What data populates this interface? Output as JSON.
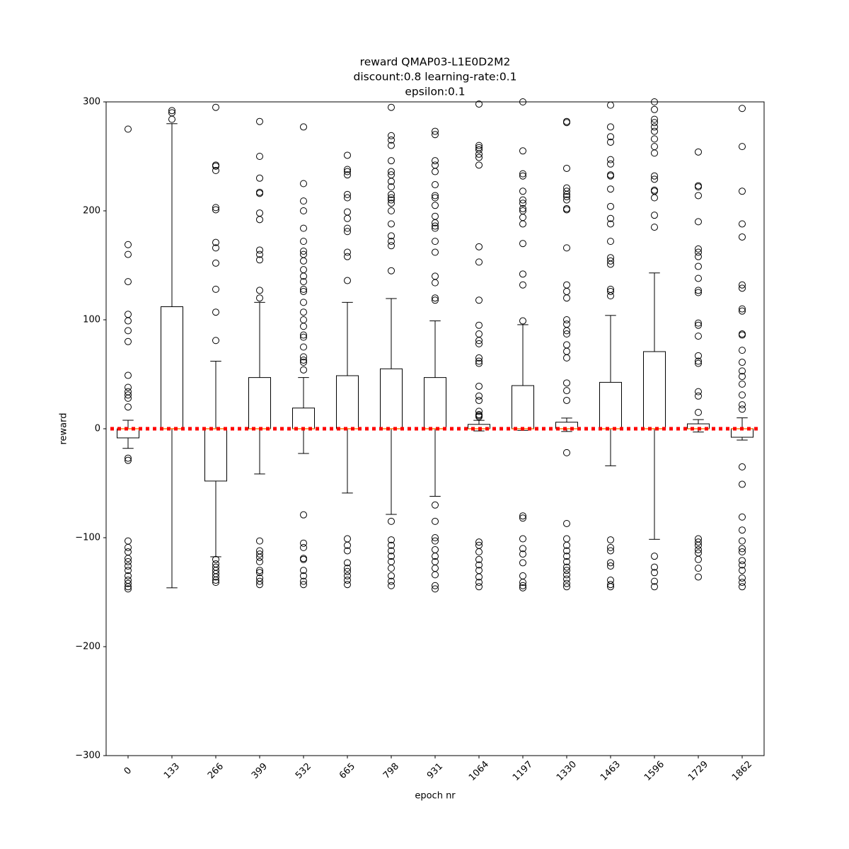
{
  "chart_data": {
    "type": "box",
    "title": [
      "reward QMAP03-L1E0D2M2",
      "discount:0.8 learning-rate:0.1",
      "epsilon:0.1"
    ],
    "x_label": "epoch nr",
    "y_label": "reward",
    "categories": [
      "0",
      "133",
      "266",
      "399",
      "532",
      "665",
      "798",
      "931",
      "1064",
      "1197",
      "1330",
      "1463",
      "1596",
      "1729",
      "1862"
    ],
    "ylim": [
      -300,
      300
    ],
    "yticks": [
      {
        "value": -300,
        "label": "−300"
      },
      {
        "value": -200,
        "label": "−200"
      },
      {
        "value": -100,
        "label": "−100"
      },
      0,
      100,
      200,
      300
    ],
    "box_color": "#000000",
    "median_color": "#ff7f0e",
    "reference_line": {
      "value": 0,
      "color": "#ff0000"
    },
    "boxes": [
      {
        "whislo": -18,
        "q1": -8.4,
        "med": 0,
        "q3": 0,
        "whishi": 7.8,
        "fliers": [
          275,
          169,
          160,
          135,
          105,
          99,
          90,
          80,
          49,
          38,
          34,
          31,
          28,
          20,
          -27,
          -29,
          -103,
          -109,
          -113,
          -119,
          -122,
          -126,
          -130,
          -135,
          -139,
          -142,
          -145,
          -147
        ]
      },
      {
        "whislo": -146,
        "q1": 0,
        "med": 0,
        "q3": 112,
        "whishi": 280,
        "fliers": [
          292,
          290,
          284
        ]
      },
      {
        "whislo": -117.5,
        "q1": -48,
        "med": 0,
        "q3": 0,
        "whishi": 62,
        "fliers": [
          295,
          242,
          241,
          237,
          203,
          201,
          171,
          166,
          152,
          128,
          107,
          81,
          -120,
          -124,
          -127,
          -130,
          -133,
          -136,
          -139,
          -141
        ]
      },
      {
        "whislo": -41.5,
        "q1": 0,
        "med": 0,
        "q3": 47,
        "whishi": 116,
        "fliers": [
          282,
          250,
          230,
          217,
          216,
          198,
          192,
          164,
          160,
          155,
          127,
          120,
          -103,
          -112,
          -115,
          -118,
          -122,
          -130,
          -132,
          -137,
          -140,
          -143
        ]
      },
      {
        "whislo": -22.7,
        "q1": 0,
        "med": 0,
        "q3": 19,
        "whishi": 47,
        "fliers": [
          277,
          225,
          209,
          200,
          184,
          172,
          163,
          160,
          154,
          146,
          140,
          135,
          128,
          126,
          116,
          107,
          100,
          94,
          86,
          84,
          75,
          66,
          63,
          61,
          54,
          -79,
          -105,
          -109,
          -119,
          -120,
          -130,
          -135,
          -140,
          -143
        ]
      },
      {
        "whislo": -59,
        "q1": 0,
        "med": 0,
        "q3": 48.7,
        "whishi": 116,
        "fliers": [
          251,
          238,
          236,
          233,
          215,
          212,
          199,
          193,
          184,
          181,
          162,
          158,
          136,
          -101,
          -107,
          -112,
          -123,
          -128,
          -131,
          -135,
          -139,
          -143
        ]
      },
      {
        "whislo": -78.6,
        "q1": 0,
        "med": 0,
        "q3": 55,
        "whishi": 119.5,
        "fliers": [
          295,
          269,
          265,
          260,
          246,
          236,
          233,
          227,
          222,
          215,
          212,
          210,
          207,
          200,
          188,
          177,
          172,
          168,
          145,
          -85,
          -102,
          -107,
          -112,
          -117,
          -122,
          -128,
          -135,
          -140,
          -144
        ]
      },
      {
        "whislo": -62,
        "q1": 0,
        "med": 0,
        "q3": 47,
        "whishi": 99,
        "fliers": [
          273,
          270,
          246,
          242,
          236,
          224,
          214,
          212,
          205,
          195,
          189,
          186,
          184,
          172,
          162,
          140,
          134,
          120,
          118,
          -70,
          -85,
          -100,
          -103,
          -111,
          -117,
          -122,
          -128,
          -134,
          -144,
          -147
        ]
      },
      {
        "whislo": -2,
        "q1": 0,
        "med": 0,
        "q3": 4,
        "whishi": 7.7,
        "fliers": [
          298,
          260,
          258,
          256,
          252,
          249,
          242,
          167,
          153,
          118,
          95,
          87,
          81,
          78,
          65,
          62,
          60,
          39,
          30,
          26,
          16,
          13,
          12,
          11,
          -104,
          -107,
          -113,
          -120,
          -125,
          -130,
          -136,
          -141,
          -145
        ]
      },
      {
        "whislo": -1.5,
        "q1": 0,
        "med": 0,
        "q3": 39.6,
        "whishi": 95.5,
        "fliers": [
          300,
          255,
          234,
          232,
          218,
          210,
          207,
          202,
          200,
          194,
          188,
          170,
          142,
          132,
          99,
          -80,
          -82,
          -101,
          -110,
          -115,
          -123,
          -135,
          -141,
          -144,
          -146
        ]
      },
      {
        "whislo": -2.5,
        "q1": 0,
        "med": 0,
        "q3": 6,
        "whishi": 9.8,
        "fliers": [
          282,
          281,
          239,
          221,
          218,
          215,
          213,
          210,
          202,
          201,
          166,
          132,
          126,
          120,
          100,
          96,
          90,
          87,
          77,
          71,
          65,
          42,
          35,
          26,
          -22,
          -87,
          -101,
          -107,
          -112,
          -117,
          -122,
          -127,
          -130,
          -134,
          -138,
          -142,
          -145
        ]
      },
      {
        "whislo": -34,
        "q1": 0,
        "med": 0,
        "q3": 42.6,
        "whishi": 104,
        "fliers": [
          297,
          277,
          268,
          263,
          247,
          243,
          233,
          232,
          220,
          204,
          193,
          188,
          172,
          157,
          154,
          151,
          128,
          126,
          122,
          -102,
          -109,
          -112,
          -123,
          -126,
          -139,
          -143,
          -145
        ]
      },
      {
        "whislo": -101.5,
        "q1": 0,
        "med": 0,
        "q3": 70.8,
        "whishi": 143,
        "fliers": [
          300,
          293,
          284,
          281,
          277,
          273,
          266,
          259,
          253,
          232,
          229,
          219,
          218,
          212,
          196,
          185,
          -117,
          -127,
          -132,
          -140,
          -145
        ]
      },
      {
        "whislo": -3,
        "q1": 0,
        "med": 0,
        "q3": 4.5,
        "whishi": 8.4,
        "fliers": [
          254,
          223,
          222,
          214,
          190,
          165,
          162,
          158,
          149,
          138,
          127,
          125,
          97,
          95,
          85,
          67,
          62,
          60,
          34,
          30,
          15,
          -101,
          -104,
          -107,
          -111,
          -114,
          -120,
          -128,
          -136
        ]
      },
      {
        "whislo": -10.4,
        "q1": -7.8,
        "med": 0,
        "q3": 0,
        "whishi": 10,
        "fliers": [
          294,
          259,
          218,
          188,
          176,
          132,
          129,
          110,
          108,
          87,
          86,
          72,
          61,
          53,
          48,
          41,
          31,
          22,
          18,
          -35,
          -51,
          -81,
          -93,
          -103,
          -110,
          -113,
          -121,
          -125,
          -130,
          -137,
          -141,
          -145
        ]
      }
    ]
  }
}
